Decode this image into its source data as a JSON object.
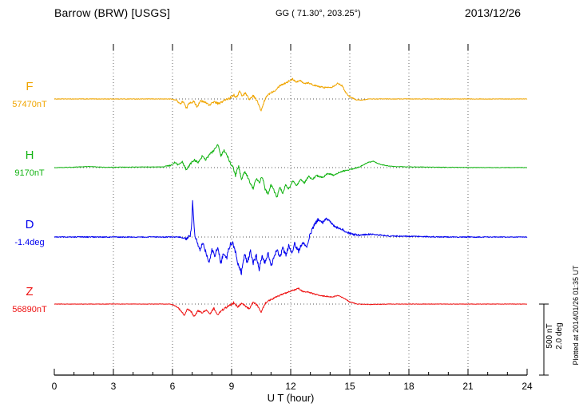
{
  "header": {
    "title": "Barrow (BRW)  [USGS]",
    "coords": "GG ( 71.30°, 203.25°)",
    "date": "2013/12/26"
  },
  "axis": {
    "xlabel": "U T (hour)",
    "tick_hours": [
      0,
      3,
      6,
      9,
      12,
      15,
      18,
      21,
      24
    ],
    "x_min": 0,
    "x_max": 24
  },
  "scalebar": {
    "nt_label": "500 nT",
    "deg_label": "2.0 deg",
    "nt": 500,
    "deg": 2.0
  },
  "footer": {
    "plotted_at": "Plotted at 2014/01/26 01:35 UT"
  },
  "chart_data": {
    "type": "line",
    "title": "Barrow (BRW) [USGS] magnetogram 2013/12/26",
    "xlabel": "U T (hour)",
    "x_range": [
      0,
      24
    ],
    "grid": "dotted vertical gridlines every 3 hours; dotted horizontal baseline per trace",
    "legend_position": "left baseline labels",
    "series": [
      {
        "name": "F",
        "baseline_label": "57470nT",
        "baseline_value": 57470,
        "unit": "nT",
        "color": "#f0a500",
        "anchors": [
          [
            0,
            0
          ],
          [
            5.9,
            0
          ],
          [
            6.2,
            -8
          ],
          [
            6.4,
            -35
          ],
          [
            6.55,
            -15
          ],
          [
            6.7,
            -70
          ],
          [
            6.85,
            -25
          ],
          [
            7.1,
            -20
          ],
          [
            7.25,
            -55
          ],
          [
            7.4,
            -15
          ],
          [
            7.7,
            -25
          ],
          [
            7.9,
            -45
          ],
          [
            8.1,
            -18
          ],
          [
            8.35,
            -35
          ],
          [
            8.6,
            -12
          ],
          [
            8.9,
            5
          ],
          [
            9.1,
            30
          ],
          [
            9.25,
            10
          ],
          [
            9.4,
            55
          ],
          [
            9.55,
            20
          ],
          [
            9.7,
            45
          ],
          [
            9.9,
            -5
          ],
          [
            10.1,
            25
          ],
          [
            10.3,
            -15
          ],
          [
            10.5,
            -85
          ],
          [
            10.65,
            -20
          ],
          [
            10.8,
            25
          ],
          [
            11,
            45
          ],
          [
            11.2,
            60
          ],
          [
            11.45,
            95
          ],
          [
            11.7,
            110
          ],
          [
            11.9,
            125
          ],
          [
            12.1,
            140
          ],
          [
            12.3,
            120
          ],
          [
            12.5,
            130
          ],
          [
            12.7,
            110
          ],
          [
            12.9,
            115
          ],
          [
            13.2,
            95
          ],
          [
            13.5,
            85
          ],
          [
            13.8,
            80
          ],
          [
            14.1,
            85
          ],
          [
            14.4,
            110
          ],
          [
            14.6,
            95
          ],
          [
            14.8,
            45
          ],
          [
            15,
            15
          ],
          [
            15.3,
            -5
          ],
          [
            15.6,
            -8
          ],
          [
            16,
            0
          ],
          [
            18,
            0
          ],
          [
            20,
            0
          ],
          [
            22,
            0
          ],
          [
            24,
            0
          ]
        ],
        "noise_envelope": [
          [
            0,
            2
          ],
          [
            6,
            2
          ],
          [
            6.5,
            8
          ],
          [
            9,
            8
          ],
          [
            12,
            6
          ],
          [
            15,
            5
          ],
          [
            15.5,
            2
          ],
          [
            24,
            1.5
          ]
        ]
      },
      {
        "name": "H",
        "baseline_label": "9170nT",
        "baseline_value": 9170,
        "unit": "nT",
        "color": "#12b312",
        "anchors": [
          [
            0,
            0
          ],
          [
            1,
            3
          ],
          [
            1.8,
            8
          ],
          [
            2.5,
            2
          ],
          [
            5.5,
            5
          ],
          [
            5.9,
            15
          ],
          [
            6.1,
            35
          ],
          [
            6.3,
            20
          ],
          [
            6.5,
            40
          ],
          [
            6.7,
            -15
          ],
          [
            6.9,
            25
          ],
          [
            7.1,
            55
          ],
          [
            7.3,
            35
          ],
          [
            7.5,
            80
          ],
          [
            7.7,
            55
          ],
          [
            7.9,
            95
          ],
          [
            8.1,
            120
          ],
          [
            8.3,
            165
          ],
          [
            8.45,
            80
          ],
          [
            8.6,
            125
          ],
          [
            8.75,
            95
          ],
          [
            8.9,
            40
          ],
          [
            9.05,
            10
          ],
          [
            9.2,
            -55
          ],
          [
            9.35,
            15
          ],
          [
            9.5,
            -90
          ],
          [
            9.65,
            -30
          ],
          [
            9.8,
            -60
          ],
          [
            9.95,
            -110
          ],
          [
            10.1,
            -150
          ],
          [
            10.25,
            -70
          ],
          [
            10.4,
            -110
          ],
          [
            10.55,
            -60
          ],
          [
            10.7,
            -150
          ],
          [
            10.85,
            -190
          ],
          [
            11,
            -120
          ],
          [
            11.15,
            -160
          ],
          [
            11.3,
            -210
          ],
          [
            11.45,
            -140
          ],
          [
            11.6,
            -180
          ],
          [
            11.75,
            -120
          ],
          [
            11.9,
            -150
          ],
          [
            12.1,
            -95
          ],
          [
            12.3,
            -130
          ],
          [
            12.5,
            -80
          ],
          [
            12.7,
            -110
          ],
          [
            12.9,
            -60
          ],
          [
            13.1,
            -85
          ],
          [
            13.3,
            -55
          ],
          [
            13.6,
            -70
          ],
          [
            13.9,
            -40
          ],
          [
            14.2,
            -55
          ],
          [
            14.5,
            -30
          ],
          [
            14.8,
            -20
          ],
          [
            15.1,
            -10
          ],
          [
            15.5,
            5
          ],
          [
            15.9,
            35
          ],
          [
            16.2,
            45
          ],
          [
            16.5,
            25
          ],
          [
            16.8,
            15
          ],
          [
            17.2,
            8
          ],
          [
            18,
            5
          ],
          [
            19,
            3
          ],
          [
            20,
            2
          ],
          [
            22,
            0
          ],
          [
            24,
            0
          ]
        ],
        "noise_envelope": [
          [
            0,
            2
          ],
          [
            5.5,
            2
          ],
          [
            6,
            6
          ],
          [
            9,
            10
          ],
          [
            12,
            8
          ],
          [
            15,
            4
          ],
          [
            16,
            3
          ],
          [
            17,
            2
          ],
          [
            24,
            1.5
          ]
        ]
      },
      {
        "name": "D",
        "baseline_label": "-1.4deg",
        "baseline_value": -1.4,
        "unit": "deg",
        "color": "#0000ee",
        "anchors": [
          [
            0,
            0
          ],
          [
            6.4,
            0
          ],
          [
            6.7,
            -0.05
          ],
          [
            6.9,
            0.05
          ],
          [
            6.97,
            0.3
          ],
          [
            7.02,
            1
          ],
          [
            7.07,
            0.55
          ],
          [
            7.12,
            0.1
          ],
          [
            7.25,
            -0.15
          ],
          [
            7.4,
            -0.35
          ],
          [
            7.55,
            -0.15
          ],
          [
            7.7,
            -0.45
          ],
          [
            7.85,
            -0.7
          ],
          [
            8,
            -0.35
          ],
          [
            8.15,
            -0.55
          ],
          [
            8.3,
            -0.25
          ],
          [
            8.45,
            -0.75
          ],
          [
            8.6,
            -0.45
          ],
          [
            8.75,
            -0.6
          ],
          [
            8.9,
            -0.25
          ],
          [
            9.05,
            -0.15
          ],
          [
            9.2,
            -0.45
          ],
          [
            9.35,
            -0.8
          ],
          [
            9.5,
            -1
          ],
          [
            9.65,
            -0.5
          ],
          [
            9.8,
            -0.7
          ],
          [
            9.95,
            -0.4
          ],
          [
            10.1,
            -0.75
          ],
          [
            10.25,
            -0.5
          ],
          [
            10.4,
            -0.9
          ],
          [
            10.55,
            -0.55
          ],
          [
            10.7,
            -0.75
          ],
          [
            10.85,
            -0.45
          ],
          [
            11,
            -0.85
          ],
          [
            11.15,
            -0.55
          ],
          [
            11.3,
            -0.35
          ],
          [
            11.45,
            -0.6
          ],
          [
            11.6,
            -0.3
          ],
          [
            11.75,
            -0.5
          ],
          [
            11.9,
            -0.25
          ],
          [
            12.05,
            -0.45
          ],
          [
            12.2,
            -0.2
          ],
          [
            12.4,
            -0.4
          ],
          [
            12.6,
            -0.15
          ],
          [
            12.8,
            -0.3
          ],
          [
            13,
            0.1
          ],
          [
            13.2,
            0.35
          ],
          [
            13.4,
            0.5
          ],
          [
            13.6,
            0.4
          ],
          [
            13.8,
            0.5
          ],
          [
            14,
            0.45
          ],
          [
            14.2,
            0.3
          ],
          [
            14.5,
            0.25
          ],
          [
            14.8,
            0.15
          ],
          [
            15.1,
            0.08
          ],
          [
            15.5,
            0.05
          ],
          [
            16,
            0.08
          ],
          [
            17,
            0.03
          ],
          [
            18,
            0.02
          ],
          [
            20,
            0
          ],
          [
            22,
            0
          ],
          [
            24,
            0
          ]
        ],
        "noise_envelope": [
          [
            0,
            0.015
          ],
          [
            6.4,
            0.015
          ],
          [
            7,
            0.05
          ],
          [
            9,
            0.07
          ],
          [
            12,
            0.06
          ],
          [
            15,
            0.03
          ],
          [
            16,
            0.02
          ],
          [
            24,
            0.01
          ]
        ]
      },
      {
        "name": "Z",
        "baseline_label": "56890nT",
        "baseline_value": 56890,
        "unit": "nT",
        "color": "#ee1111",
        "anchors": [
          [
            0,
            0
          ],
          [
            5.9,
            0
          ],
          [
            6.2,
            -15
          ],
          [
            6.45,
            -50
          ],
          [
            6.6,
            -80
          ],
          [
            6.75,
            -35
          ],
          [
            6.95,
            -55
          ],
          [
            7.1,
            -90
          ],
          [
            7.3,
            -45
          ],
          [
            7.5,
            -65
          ],
          [
            7.7,
            -40
          ],
          [
            7.9,
            -70
          ],
          [
            8.1,
            -30
          ],
          [
            8.3,
            -75
          ],
          [
            8.5,
            -45
          ],
          [
            8.7,
            -25
          ],
          [
            8.9,
            -10
          ],
          [
            9.1,
            10
          ],
          [
            9.3,
            -20
          ],
          [
            9.5,
            5
          ],
          [
            9.7,
            -15
          ],
          [
            9.9,
            -35
          ],
          [
            10.1,
            15
          ],
          [
            10.3,
            -10
          ],
          [
            10.5,
            -55
          ],
          [
            10.7,
            5
          ],
          [
            10.9,
            25
          ],
          [
            11.2,
            45
          ],
          [
            11.5,
            65
          ],
          [
            11.8,
            80
          ],
          [
            12.1,
            95
          ],
          [
            12.4,
            110
          ],
          [
            12.6,
            90
          ],
          [
            12.9,
            85
          ],
          [
            13.2,
            70
          ],
          [
            13.5,
            60
          ],
          [
            13.8,
            55
          ],
          [
            14.1,
            50
          ],
          [
            14.4,
            60
          ],
          [
            14.7,
            40
          ],
          [
            15,
            15
          ],
          [
            15.4,
            0
          ],
          [
            16,
            -3
          ],
          [
            17,
            0
          ],
          [
            18,
            0
          ],
          [
            20,
            0
          ],
          [
            22,
            0
          ],
          [
            24,
            0
          ]
        ],
        "noise_envelope": [
          [
            0,
            1.5
          ],
          [
            5.9,
            1.5
          ],
          [
            6.5,
            6
          ],
          [
            9,
            7
          ],
          [
            12,
            5
          ],
          [
            15,
            3
          ],
          [
            16,
            2
          ],
          [
            24,
            1.5
          ]
        ]
      }
    ]
  }
}
